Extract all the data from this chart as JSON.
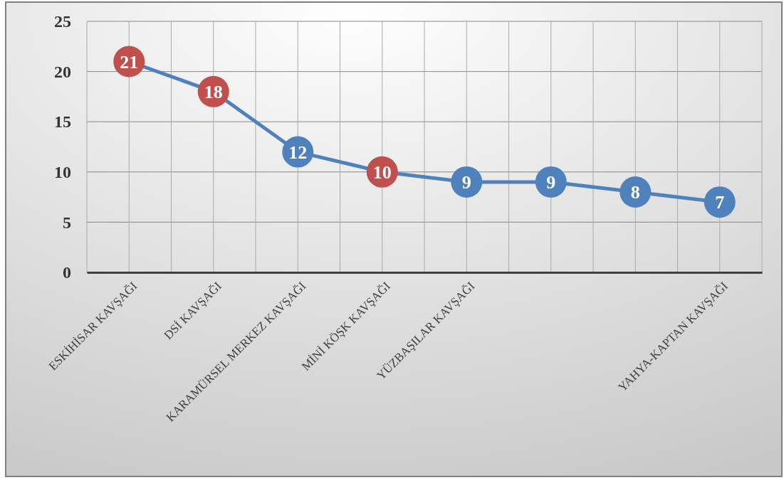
{
  "chart_data": {
    "type": "line",
    "categories": [
      "ESKİHİSAR KAVŞAĞI",
      "DSİ KAVŞAĞI",
      "KARAMÜRSEL MERKEZ KAVŞAĞI",
      "MİNİ KÖŞK KAVŞAĞI",
      "YÜZBAŞILAR KAVŞAĞI",
      null,
      null,
      "YAHYA-KAPTAN KAVŞAĞI"
    ],
    "series": [
      {
        "color": "#4f81bd",
        "colors": [
          "#c0504d",
          "#c0504d",
          "#4f81bd",
          "#c0504d",
          "#4f81bd",
          "#4f81bd",
          "#4f81bd",
          "#4f81bd"
        ],
        "values": [
          21,
          18,
          12,
          10,
          9,
          9,
          8,
          7
        ]
      }
    ],
    "ylim": [
      0,
      25
    ],
    "yticks": [
      0,
      5,
      10,
      15,
      20,
      25
    ],
    "grid": true,
    "marker": "circle",
    "data_labels": true
  }
}
